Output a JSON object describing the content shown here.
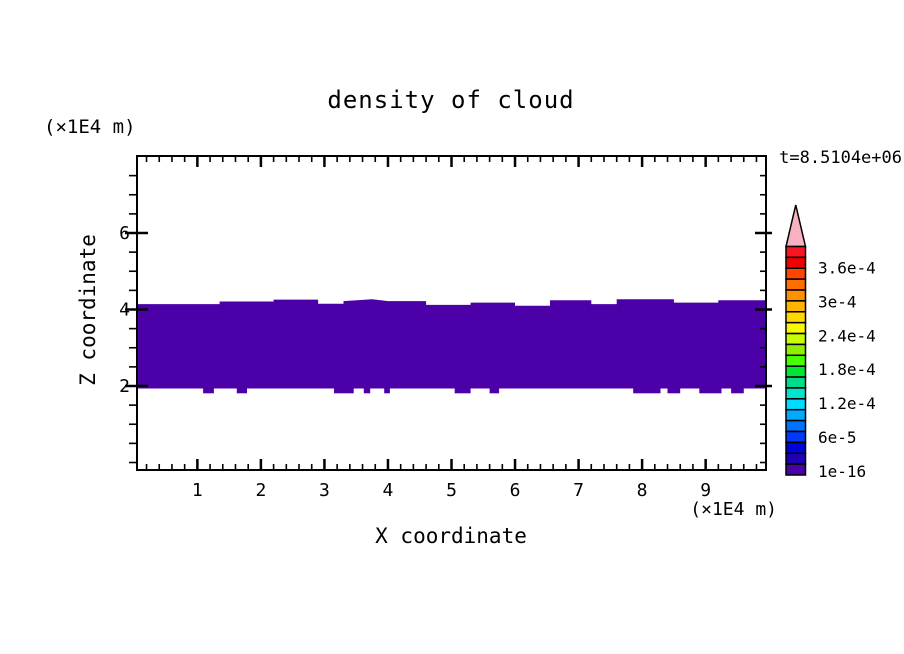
{
  "figure": {
    "title": "density of cloud",
    "time_label": "t=8.5104e+06",
    "z_axis_unit": "(×1E4 m)",
    "x_axis_unit": "(×1E4 m)",
    "x_label": "X coordinate",
    "z_label": "Z coordinate"
  },
  "layout_colors": {
    "background": "#ffffff",
    "frame": "#000000",
    "text": "#000000"
  },
  "chart_data": {
    "type": "heatmap",
    "subtype": "filled-contour",
    "title": "density of cloud",
    "xlabel": "X coordinate",
    "ylabel": "Z coordinate",
    "x_unit_scale": "(×1E4 m)",
    "z_unit_scale": "(×1E4 m)",
    "time_annotation": "t=8.5104e+06",
    "xlim": [
      0.05,
      9.95
    ],
    "zlim": [
      -0.2,
      8.02
    ],
    "x_major_ticks": [
      1,
      2,
      3,
      4,
      5,
      6,
      7,
      8,
      9
    ],
    "x_minor_step": 0.2,
    "z_major_ticks": [
      2,
      4,
      6
    ],
    "z_minor_step": 0.5,
    "grid": false,
    "band": {
      "description": "cloud density band (lowest contour bin)",
      "value": "1e-16",
      "color": "#4b00a8",
      "z_bottom": 1.935,
      "notch_z": 1.81,
      "top_edge": [
        [
          0.05,
          4.14
        ],
        [
          1.35,
          4.14
        ],
        [
          1.35,
          4.21
        ],
        [
          2.2,
          4.21
        ],
        [
          2.2,
          4.26
        ],
        [
          2.9,
          4.26
        ],
        [
          2.9,
          4.15
        ],
        [
          3.3,
          4.15
        ],
        [
          3.3,
          4.22
        ],
        [
          3.75,
          4.27
        ],
        [
          4.0,
          4.22
        ],
        [
          4.6,
          4.22
        ],
        [
          4.6,
          4.12
        ],
        [
          5.3,
          4.12
        ],
        [
          5.3,
          4.18
        ],
        [
          6.0,
          4.18
        ],
        [
          6.0,
          4.1
        ],
        [
          6.55,
          4.1
        ],
        [
          6.55,
          4.24
        ],
        [
          7.2,
          4.24
        ],
        [
          7.2,
          4.14
        ],
        [
          7.6,
          4.14
        ],
        [
          7.6,
          4.27
        ],
        [
          8.5,
          4.27
        ],
        [
          8.5,
          4.18
        ],
        [
          9.2,
          4.18
        ],
        [
          9.2,
          4.24
        ],
        [
          9.95,
          4.24
        ]
      ],
      "bottom_notches": [
        [
          1.09,
          1.26
        ],
        [
          1.62,
          1.78
        ],
        [
          3.15,
          3.46
        ],
        [
          3.62,
          3.72
        ],
        [
          3.94,
          4.03
        ],
        [
          5.05,
          5.3
        ],
        [
          5.6,
          5.75
        ],
        [
          7.86,
          8.29
        ],
        [
          8.4,
          8.6
        ],
        [
          8.9,
          9.25
        ],
        [
          9.4,
          9.6
        ]
      ]
    },
    "colorbar": {
      "tick_labels": [
        "3.6e-4",
        "3e-4",
        "2.4e-4",
        "1.8e-4",
        "1.2e-4",
        "6e-5",
        "1e-16"
      ],
      "segment_colors_top_to_bottom": [
        "#fa1420",
        "#f00000",
        "#ff4600",
        "#ff6e00",
        "#ff9000",
        "#ffb400",
        "#ffd800",
        "#f8f800",
        "#c8ff00",
        "#8cf000",
        "#46ff00",
        "#00e632",
        "#00dc8c",
        "#00e6cd",
        "#00dcff",
        "#00aaff",
        "#0072ff",
        "#0038ff",
        "#0000dc",
        "#1e00b4",
        "#4b00a8"
      ],
      "overflow_arrow_color": "#f8b1c0"
    }
  }
}
